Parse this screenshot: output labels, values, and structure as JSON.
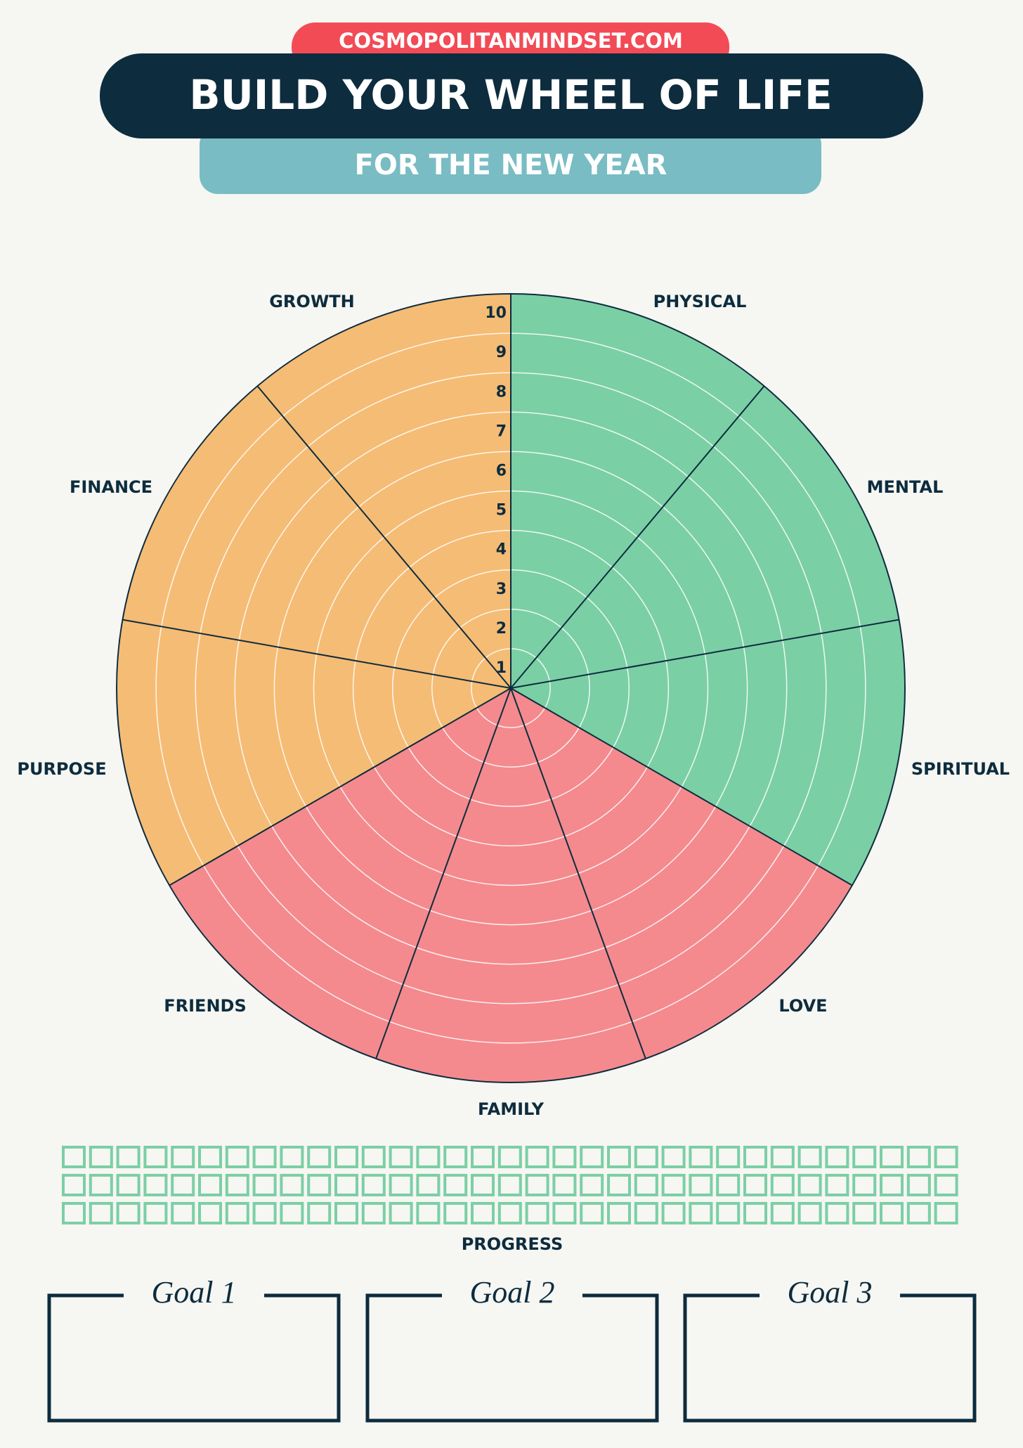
{
  "header": {
    "website": "COSMOPOLITANMINDSET.COM",
    "title": "BUILD YOUR WHEEL OF LIFE",
    "subtitle": "FOR THE NEW YEAR"
  },
  "wheel": {
    "areas": [
      {
        "label": "PHYSICAL",
        "color": "#7bcfa5"
      },
      {
        "label": "MENTAL",
        "color": "#7bcfa5"
      },
      {
        "label": "SPIRITUAL",
        "color": "#7bcfa5"
      },
      {
        "label": "LOVE",
        "color": "#f48a8e"
      },
      {
        "label": "FAMILY",
        "color": "#f48a8e"
      },
      {
        "label": "FRIENDS",
        "color": "#f48a8e"
      },
      {
        "label": "PURPOSE",
        "color": "#f5bc75"
      },
      {
        "label": "FINANCE",
        "color": "#f5bc75"
      },
      {
        "label": "GROWTH",
        "color": "#f5bc75"
      }
    ],
    "scale": [
      1,
      2,
      3,
      4,
      5,
      6,
      7,
      8,
      9,
      10
    ]
  },
  "progress": {
    "label": "PROGRESS"
  },
  "goals": [
    "Goal 1",
    "Goal 2",
    "Goal 3"
  ]
}
